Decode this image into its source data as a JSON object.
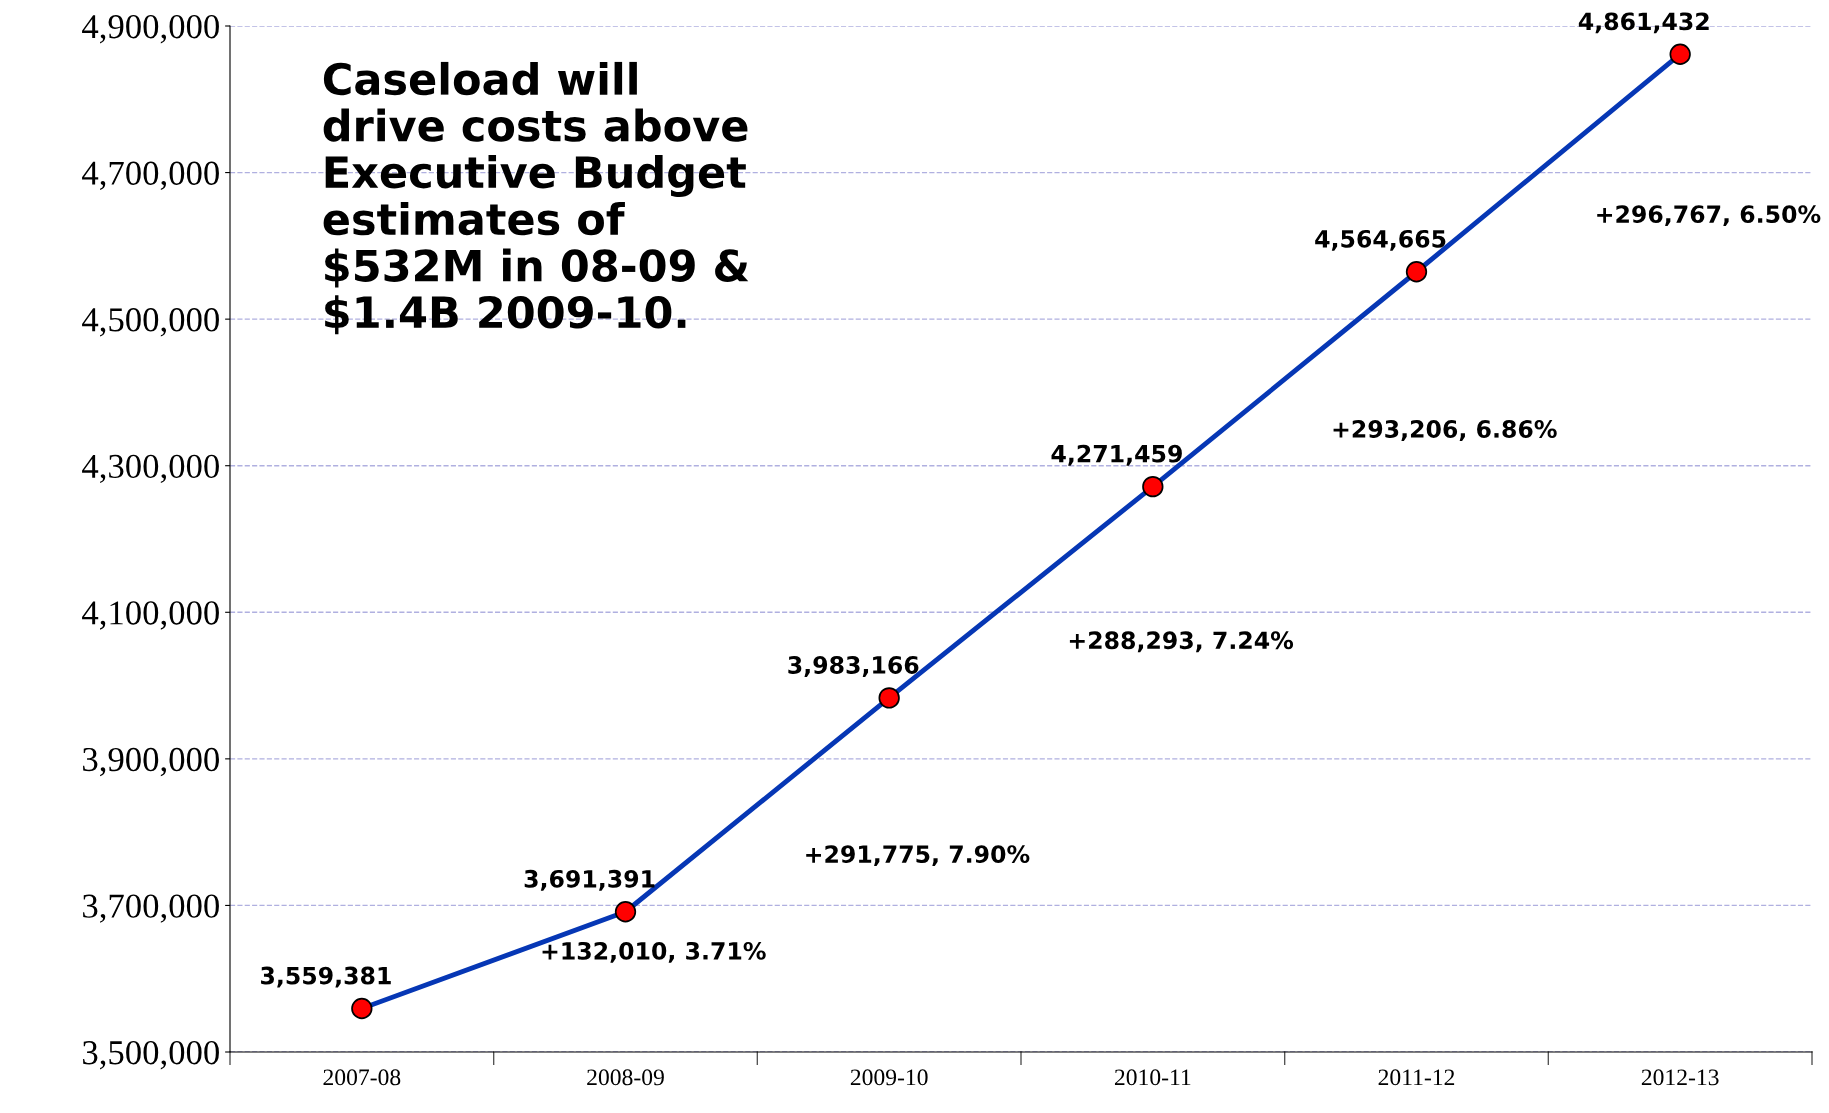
{
  "chart_data": {
    "type": "line",
    "categories": [
      "2007-08",
      "2008-09",
      "2009-10",
      "2010-11",
      "2011-12",
      "2012-13"
    ],
    "series": [
      {
        "color": "#0637b5",
        "colors": [
          "#ff0000",
          "#ff0000",
          "#ff0000",
          "#ff0000",
          "#ff0000",
          "#ff0000"
        ],
        "values": [
          3559381,
          3691391,
          3983166,
          4271459,
          4564665,
          4861432
        ],
        "value_labels": [
          "3,559,381",
          "3,691,391",
          "3,983,166",
          "4,271,459",
          "4,564,665",
          "4,861,432"
        ]
      }
    ],
    "marker": "circle",
    "line_style": "solid",
    "ylim": [
      3500000,
      4900000
    ],
    "yticks": [
      {
        "value": 3500000,
        "label": "3,500,000"
      },
      {
        "value": 3700000,
        "label": "3,700,000"
      },
      {
        "value": 3900000,
        "label": "3,900,000"
      },
      {
        "value": 4100000,
        "label": "4,100,000"
      },
      {
        "value": 4300000,
        "label": "4,300,000"
      },
      {
        "value": 4500000,
        "label": "4,500,000"
      },
      {
        "value": 4700000,
        "label": "4,700,000"
      },
      {
        "value": 4900000,
        "label": "4,900,000"
      }
    ],
    "grid": "y",
    "annotations": [
      "Caseload will\ndrive costs above\nExecutive Budget\nestimates of\n$532M in 08-09 &\n$1.4B 2009-10.",
      "+132,010, 3.71%",
      "+291,775, 7.90%",
      "+288,293, 7.24%",
      "+293,206, 6.86%",
      "+296,767, 6.50%"
    ]
  }
}
